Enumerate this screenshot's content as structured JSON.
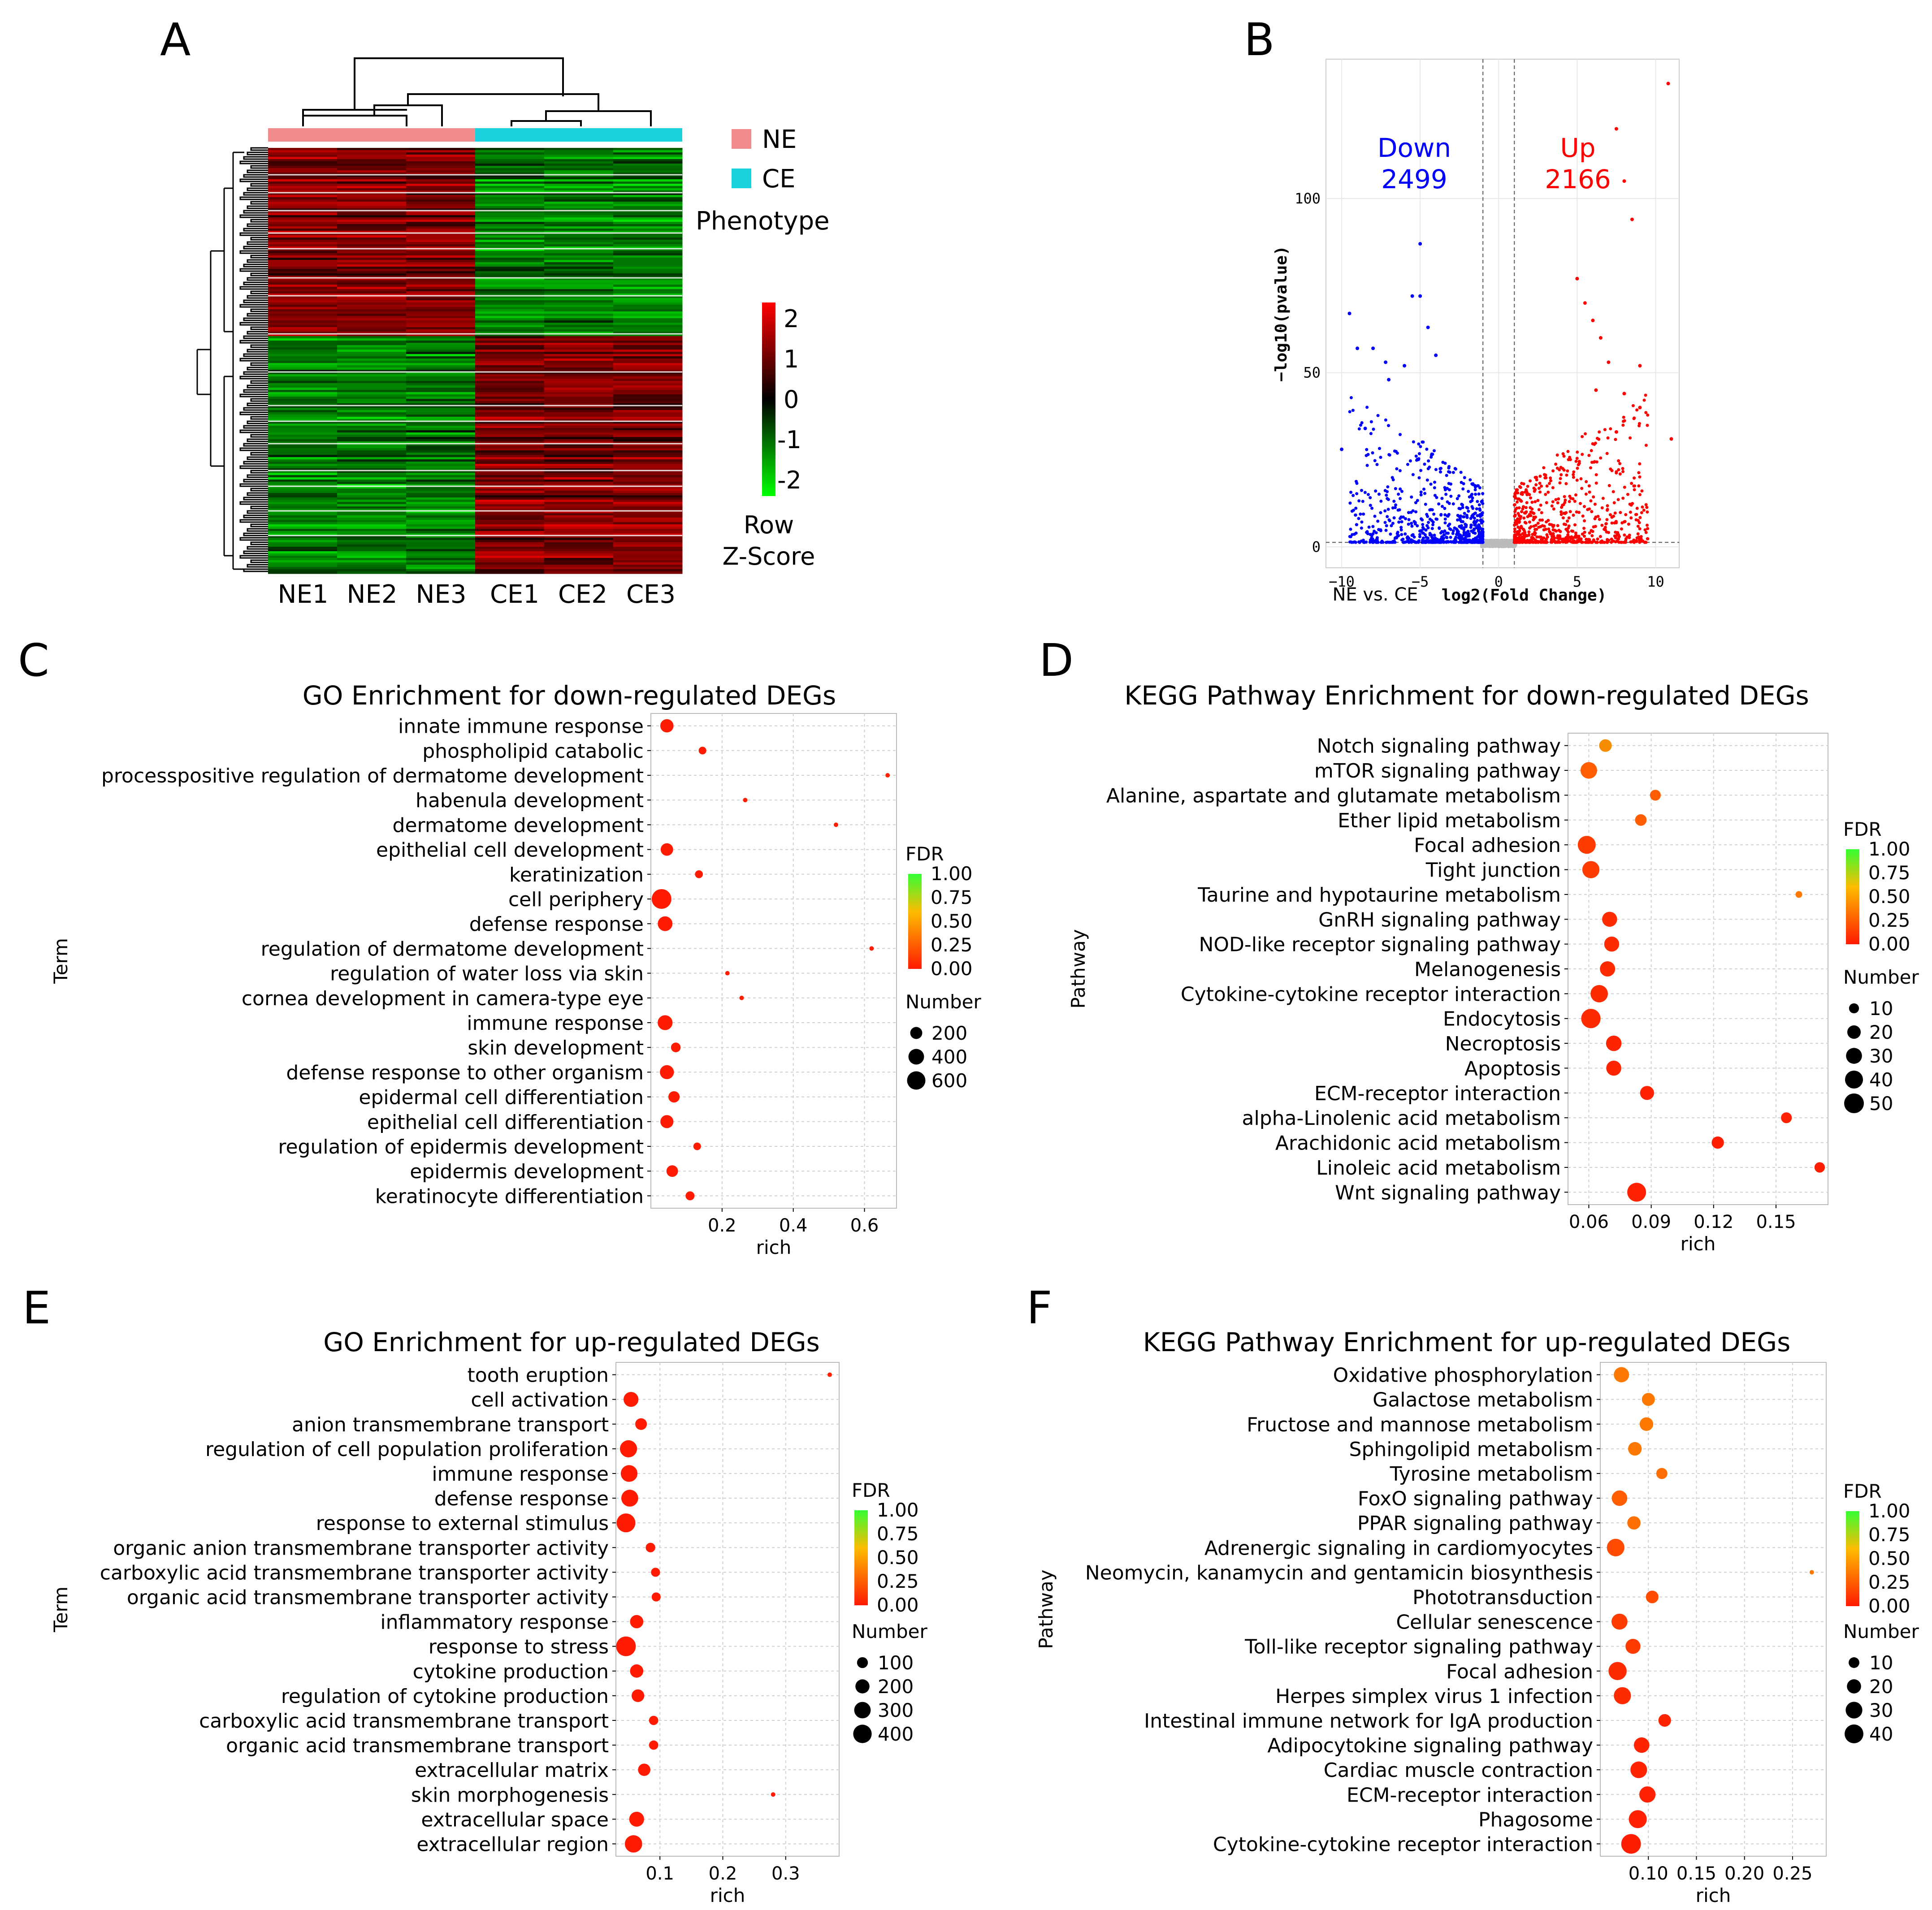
{
  "panels": {
    "A": {
      "letter": "A",
      "samples": [
        "NE1",
        "NE2",
        "NE3",
        "CE1",
        "CE2",
        "CE3"
      ],
      "legend": [
        {
          "label": "NE",
          "color": "#f08c8c"
        },
        {
          "label": "CE",
          "color": "#19d2de"
        }
      ],
      "legend_title": "Phenotype",
      "colorbar_ticks": [
        "2",
        "1",
        "0",
        "-1",
        "-2"
      ],
      "colorbar_title_1": "Row",
      "colorbar_title_2": "Z-Score",
      "colors": {
        "high": "#ff0000",
        "mid": "#000000",
        "low": "#00ff00"
      }
    },
    "B": {
      "letter": "B",
      "down_label": "Down",
      "down_count": "2499",
      "up_label": "Up",
      "up_count": "2166",
      "xlabel": "log2(Fold Change)",
      "ylabel": "−log10(pvalue)",
      "comparison": "NE vs. CE",
      "colors": {
        "down": "#0000ff",
        "up": "#ff0000",
        "ns": "#bbbbbb"
      }
    },
    "C": {
      "letter": "C"
    },
    "D": {
      "letter": "D"
    },
    "E": {
      "letter": "E"
    },
    "F": {
      "letter": "F"
    }
  },
  "chart_data": [
    {
      "panel": "A",
      "type": "heatmap",
      "columns": [
        "NE1",
        "NE2",
        "NE3",
        "CE1",
        "CE2",
        "CE3"
      ],
      "groups": [
        "NE",
        "NE",
        "NE",
        "CE",
        "CE",
        "CE"
      ],
      "color_scale": [
        -2,
        2
      ],
      "legend_title": "Phenotype"
    },
    {
      "panel": "B",
      "type": "scatter",
      "xlabel": "log2(Fold Change)",
      "ylabel": "−log10(pvalue)",
      "xticks": [
        -10,
        -5,
        0,
        5,
        10
      ],
      "yticks": [
        0,
        50,
        100
      ],
      "xlim": [
        -11,
        11.5
      ],
      "ylim": [
        -6,
        140
      ],
      "thresholds": {
        "log2fc": [
          -1,
          1
        ],
        "neg_log10_p": 1.3
      },
      "series": [
        {
          "name": "Down",
          "count": 2499,
          "color": "#0000ff"
        },
        {
          "name": "Up",
          "count": 2166,
          "color": "#ff0000"
        }
      ]
    },
    {
      "panel": "C",
      "type": "scatter",
      "title": "GO Enrichment  for down-regulated DEGs",
      "xlabel": "rich",
      "ylabel": "Term",
      "xlim": [
        0,
        0.69
      ],
      "xticks": [
        0.2,
        0.4,
        0.6
      ],
      "xtick_labels": [
        "0.2",
        "0.4",
        "0.6"
      ],
      "size_title": "Number",
      "size_legend": [
        200,
        400,
        600
      ],
      "size_range": [
        30,
        720
      ],
      "fdr_title": "FDR",
      "fdr_ticks": [
        "1.00",
        "0.75",
        "0.50",
        "0.25",
        "0.00"
      ],
      "terms": [
        "innate immune response",
        "phospholipid catabolic",
        "processpositive regulation of dermatome development",
        "habenula development",
        "dermatome development",
        "epithelial cell development",
        "keratinization",
        "cell periphery",
        "defense response",
        "regulation of dermatome development",
        "regulation of water loss via skin",
        "cornea development in camera-type eye",
        "immune response",
        "skin development",
        "defense response to other organism",
        "epidermal cell differentiation",
        "epithelial cell differentiation",
        "regulation of epidermis development",
        "epidermis development",
        "keratinocyte differentiation"
      ],
      "rich": [
        0.045,
        0.145,
        0.665,
        0.265,
        0.52,
        0.045,
        0.135,
        0.03,
        0.04,
        0.62,
        0.215,
        0.255,
        0.04,
        0.07,
        0.045,
        0.065,
        0.045,
        0.13,
        0.06,
        0.11
      ],
      "number": [
        260,
        60,
        8,
        30,
        10,
        220,
        65,
        720,
        340,
        10,
        30,
        30,
        350,
        110,
        300,
        170,
        250,
        60,
        180,
        90
      ],
      "fdr": [
        0,
        0,
        0.02,
        0.01,
        0.01,
        0,
        0,
        0,
        0,
        0.01,
        0.01,
        0.01,
        0,
        0,
        0,
        0,
        0,
        0,
        0,
        0
      ]
    },
    {
      "panel": "D",
      "type": "scatter",
      "title": "KEGG Pathway Enrichment  for down-regulated DEGs",
      "xlabel": "rich",
      "ylabel": "Pathway",
      "xlim": [
        0.05,
        0.175
      ],
      "xticks": [
        0.06,
        0.09,
        0.12,
        0.15
      ],
      "xtick_labels": [
        "0.06",
        "0.09",
        "0.12",
        "0.15"
      ],
      "size_title": "Number",
      "size_legend": [
        10,
        20,
        30,
        40,
        50
      ],
      "size_range": [
        4,
        50
      ],
      "fdr_title": "FDR",
      "fdr_ticks": [
        "1.00",
        "0.75",
        "0.50",
        "0.25",
        "0.00"
      ],
      "terms": [
        "Notch signaling pathway",
        "mTOR signaling pathway",
        "Alanine, aspartate and glutamate metabolism",
        "Ether lipid metabolism",
        "Focal adhesion",
        "Tight junction",
        "Taurine and hypotaurine metabolism",
        "GnRH signaling pathway",
        "NOD-like receptor signaling pathway",
        "Melanogenesis",
        "Cytokine-cytokine receptor interaction",
        "Endocytosis",
        "Necroptosis",
        "Apoptosis",
        "ECM-receptor interaction",
        "alpha-Linolenic acid metabolism",
        "Arachidonic acid metabolism",
        "Linoleic acid metabolism",
        "Wnt signaling pathway"
      ],
      "rich": [
        0.068,
        0.06,
        0.092,
        0.085,
        0.059,
        0.061,
        0.161,
        0.07,
        0.071,
        0.069,
        0.065,
        0.061,
        0.072,
        0.072,
        0.088,
        0.155,
        0.122,
        0.171,
        0.083
      ],
      "number": [
        17,
        33,
        12,
        14,
        40,
        36,
        5,
        26,
        26,
        27,
        37,
        48,
        28,
        26,
        22,
        12,
        16,
        11,
        45
      ],
      "fdr": [
        0.4,
        0.2,
        0.2,
        0.2,
        0.1,
        0.1,
        0.3,
        0.05,
        0.05,
        0.05,
        0.05,
        0.05,
        0.03,
        0.03,
        0.02,
        0.02,
        0.01,
        0.01,
        0.02
      ]
    },
    {
      "panel": "E",
      "type": "scatter",
      "title": "GO Enrichment  for up-regulated DEGs",
      "xlabel": "rich",
      "ylabel": "Term",
      "xlim": [
        0.03,
        0.385
      ],
      "xticks": [
        0.1,
        0.2,
        0.3
      ],
      "xtick_labels": [
        "0.1",
        "0.2",
        "0.3"
      ],
      "size_title": "Number",
      "size_legend": [
        100,
        200,
        300,
        400
      ],
      "size_range": [
        20,
        470
      ],
      "fdr_title": "FDR",
      "fdr_ticks": [
        "1.00",
        "0.75",
        "0.50",
        "0.25",
        "0.00"
      ],
      "terms": [
        "tooth eruption",
        "cell activation",
        "anion transmembrane transport",
        "regulation of cell population proliferation",
        "immune response",
        "defense response",
        "response to external stimulus",
        "organic anion transmembrane transporter activity",
        "carboxylic acid transmembrane transporter activity",
        "organic acid transmembrane transporter activity",
        "inflammatory response",
        "response to stress",
        "cytokine production",
        "regulation of cytokine production",
        "carboxylic acid transmembrane transport",
        "organic acid transmembrane transport",
        "extracellular matrix",
        "skin morphogenesis",
        "extracellular space",
        "extracellular region"
      ],
      "rich": [
        0.37,
        0.054,
        0.07,
        0.05,
        0.051,
        0.052,
        0.046,
        0.085,
        0.093,
        0.094,
        0.063,
        0.046,
        0.063,
        0.065,
        0.09,
        0.09,
        0.075,
        0.28,
        0.063,
        0.058
      ],
      "number": [
        10,
        230,
        120,
        330,
        310,
        320,
        420,
        70,
        60,
        60,
        170,
        470,
        170,
        150,
        65,
        65,
        140,
        20,
        230,
        340
      ],
      "fdr": [
        0.02,
        0,
        0,
        0,
        0,
        0,
        0,
        0,
        0,
        0,
        0,
        0,
        0,
        0,
        0,
        0,
        0,
        0.01,
        0,
        0
      ]
    },
    {
      "panel": "F",
      "type": "scatter",
      "title": "KEGG Pathway Enrichment  for up-regulated DEGs",
      "xlabel": "rich",
      "ylabel": "Pathway",
      "xlim": [
        0.05,
        0.285
      ],
      "xticks": [
        0.1,
        0.15,
        0.2,
        0.25
      ],
      "xtick_labels": [
        "0.10",
        "0.15",
        "0.20",
        "0.25"
      ],
      "size_title": "Number",
      "size_legend": [
        10,
        20,
        30,
        40
      ],
      "size_range": [
        3,
        45
      ],
      "fdr_title": "FDR",
      "fdr_ticks": [
        "1.00",
        "0.75",
        "0.50",
        "0.25",
        "0.00"
      ],
      "terms": [
        "Oxidative phosphorylation",
        "Galactose metabolism",
        "Fructose and mannose metabolism",
        "Sphingolipid metabolism",
        "Tyrosine metabolism",
        "FoxO signaling pathway",
        "PPAR signaling pathway",
        "Adrenergic signaling in cardiomyocytes",
        "Neomycin, kanamycin and gentamicin biosynthesis",
        "Phototransduction",
        "Cellular senescence",
        "Toll-like receptor signaling pathway",
        "Focal adhesion",
        "Herpes simplex virus 1 infection",
        "Intestinal immune network for IgA production",
        "Adipocytokine signaling pathway",
        "Cardiac muscle contraction",
        "ECM-receptor interaction",
        "Phagosome",
        "Cytokine-cytokine receptor interaction"
      ],
      "rich": [
        0.072,
        0.1,
        0.098,
        0.086,
        0.114,
        0.07,
        0.085,
        0.066,
        0.27,
        0.104,
        0.07,
        0.084,
        0.068,
        0.073,
        0.117,
        0.093,
        0.09,
        0.099,
        0.089,
        0.082
      ],
      "number": [
        24,
        16,
        18,
        18,
        11,
        25,
        17,
        34,
        3,
        15,
        27,
        23,
        37,
        32,
        15,
        25,
        30,
        28,
        36,
        45
      ],
      "fdr": [
        0.3,
        0.3,
        0.3,
        0.3,
        0.25,
        0.2,
        0.25,
        0.15,
        0.3,
        0.15,
        0.1,
        0.1,
        0.05,
        0.05,
        0.03,
        0.03,
        0.03,
        0.02,
        0.02,
        0.01
      ]
    }
  ]
}
